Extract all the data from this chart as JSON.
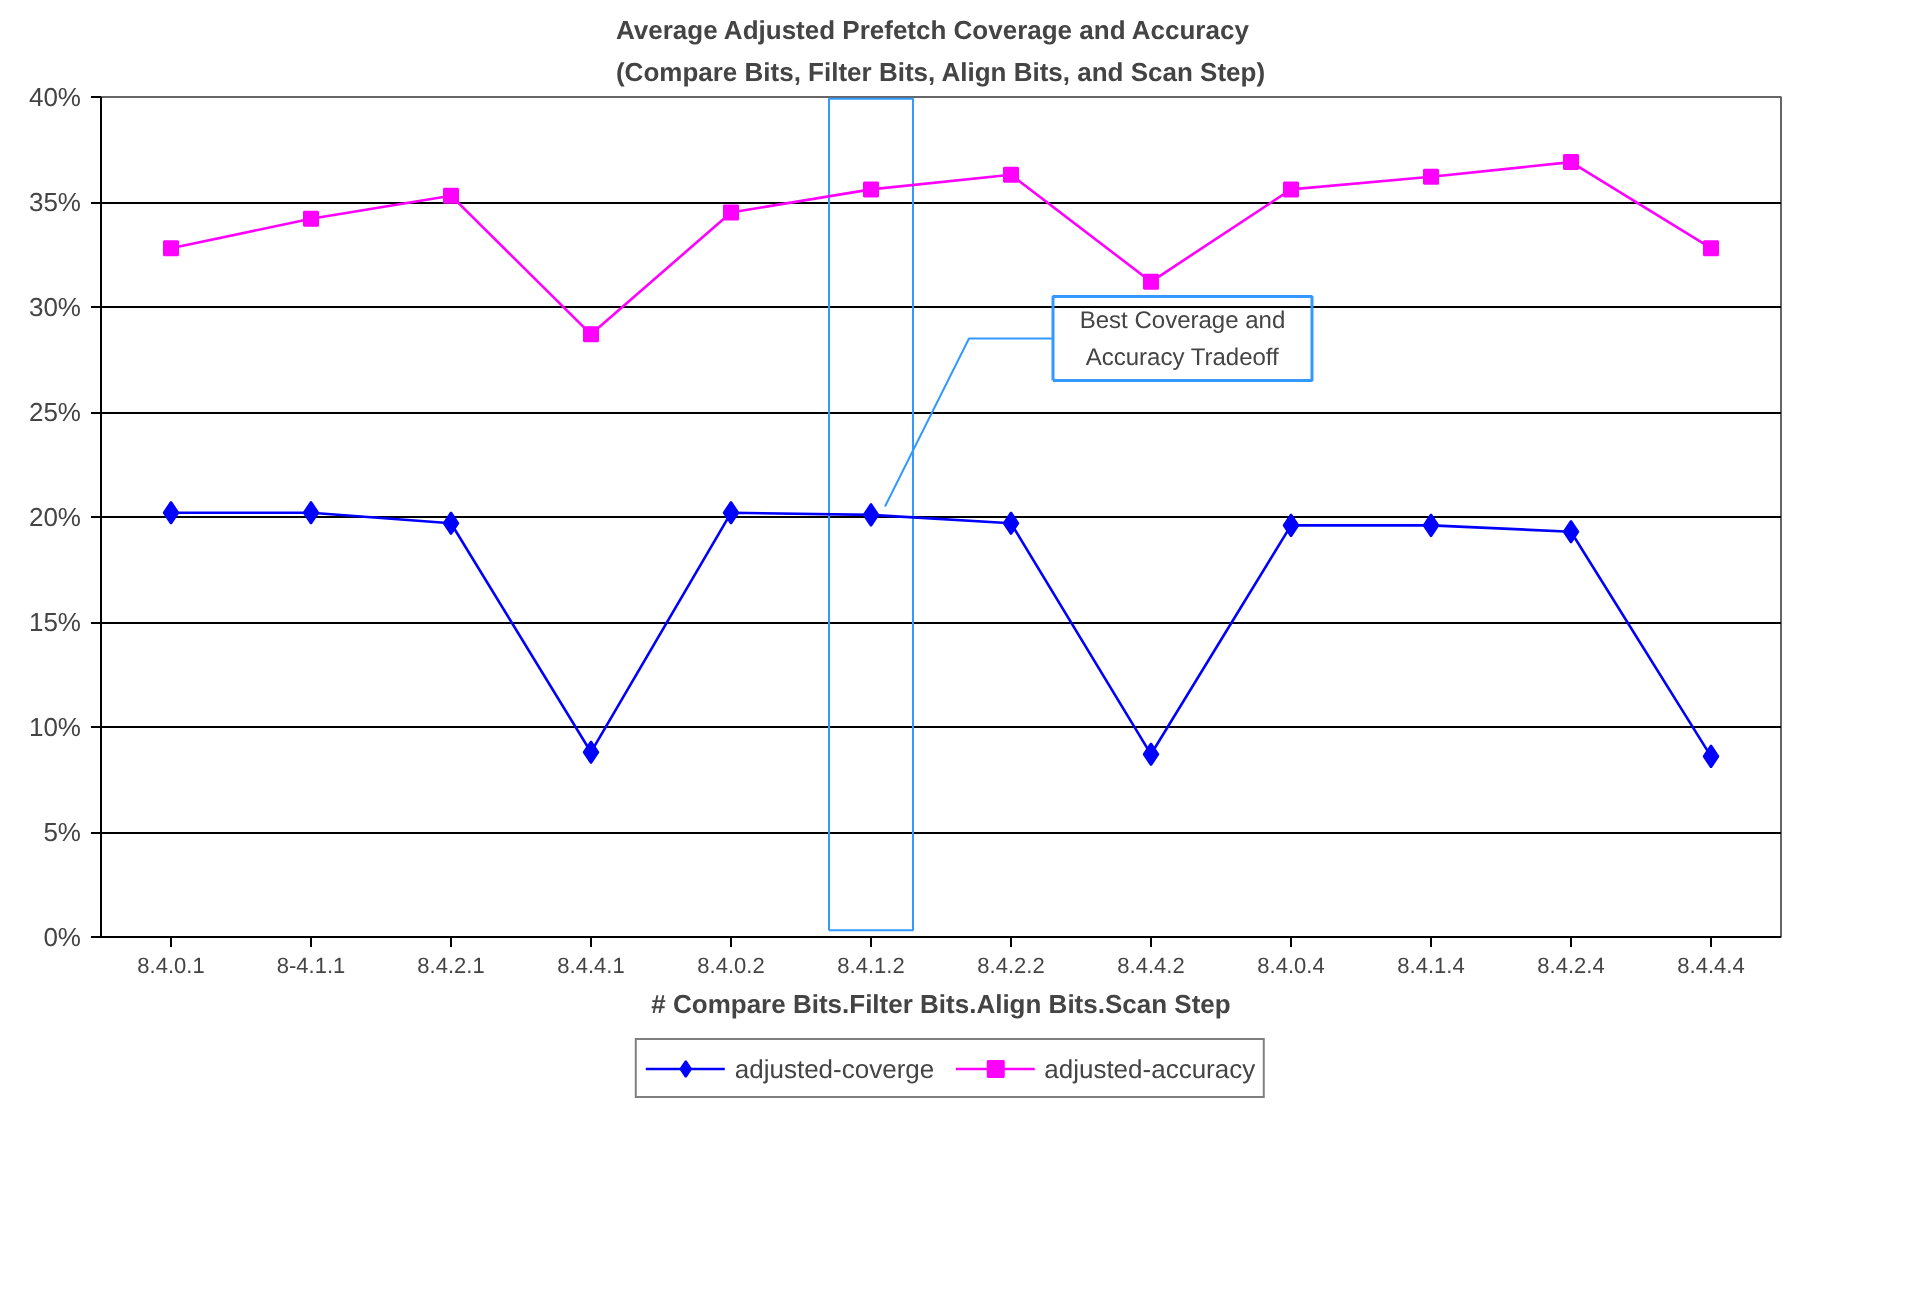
{
  "chart_data": {
    "type": "line",
    "title": "Average Adjusted Prefetch Coverage and Accuracy\n(Compare Bits, Filter Bits, Align Bits, and Scan Step)",
    "xlabel": "# Compare Bits.Filter Bits.Align Bits.Scan Step",
    "categories": [
      "8.4.0.1",
      "8-4.1.1",
      "8.4.2.1",
      "8.4.4.1",
      "8.4.0.2",
      "8.4.1.2",
      "8.4.2.2",
      "8.4.4.2",
      "8.4.0.4",
      "8.4.1.4",
      "8.4.2.4",
      "8.4.4.4"
    ],
    "series": [
      {
        "name": "adjusted-coverge",
        "color": "#0000ff",
        "marker": "diamond",
        "values": [
          20.2,
          20.2,
          19.7,
          8.8,
          20.2,
          20.1,
          19.7,
          8.7,
          19.6,
          19.6,
          19.3,
          8.6
        ]
      },
      {
        "name": "adjusted-accuracy",
        "color": "#ff00ff",
        "marker": "square",
        "values": [
          32.8,
          34.2,
          35.3,
          28.7,
          34.5,
          35.6,
          36.3,
          31.2,
          35.6,
          36.2,
          36.9,
          32.8
        ]
      }
    ],
    "ylim": [
      0,
      40
    ],
    "yticks": [
      {
        "value": 0,
        "label": "0%"
      },
      {
        "value": 5,
        "label": "5%"
      },
      {
        "value": 10,
        "label": "10%"
      },
      {
        "value": 15,
        "label": "15%"
      },
      {
        "value": 20,
        "label": "20%"
      },
      {
        "value": 25,
        "label": "25%"
      },
      {
        "value": 30,
        "label": "30%"
      },
      {
        "value": 35,
        "label": "35%"
      },
      {
        "value": 40,
        "label": "40%"
      }
    ],
    "annotations": [
      {
        "text": "Best Coverage and\nAccuracy Tradeoff",
        "x": "8.4.1.2",
        "y": 20.1
      }
    ],
    "grid": "y",
    "legend": "bottom",
    "line_style": "solid"
  }
}
